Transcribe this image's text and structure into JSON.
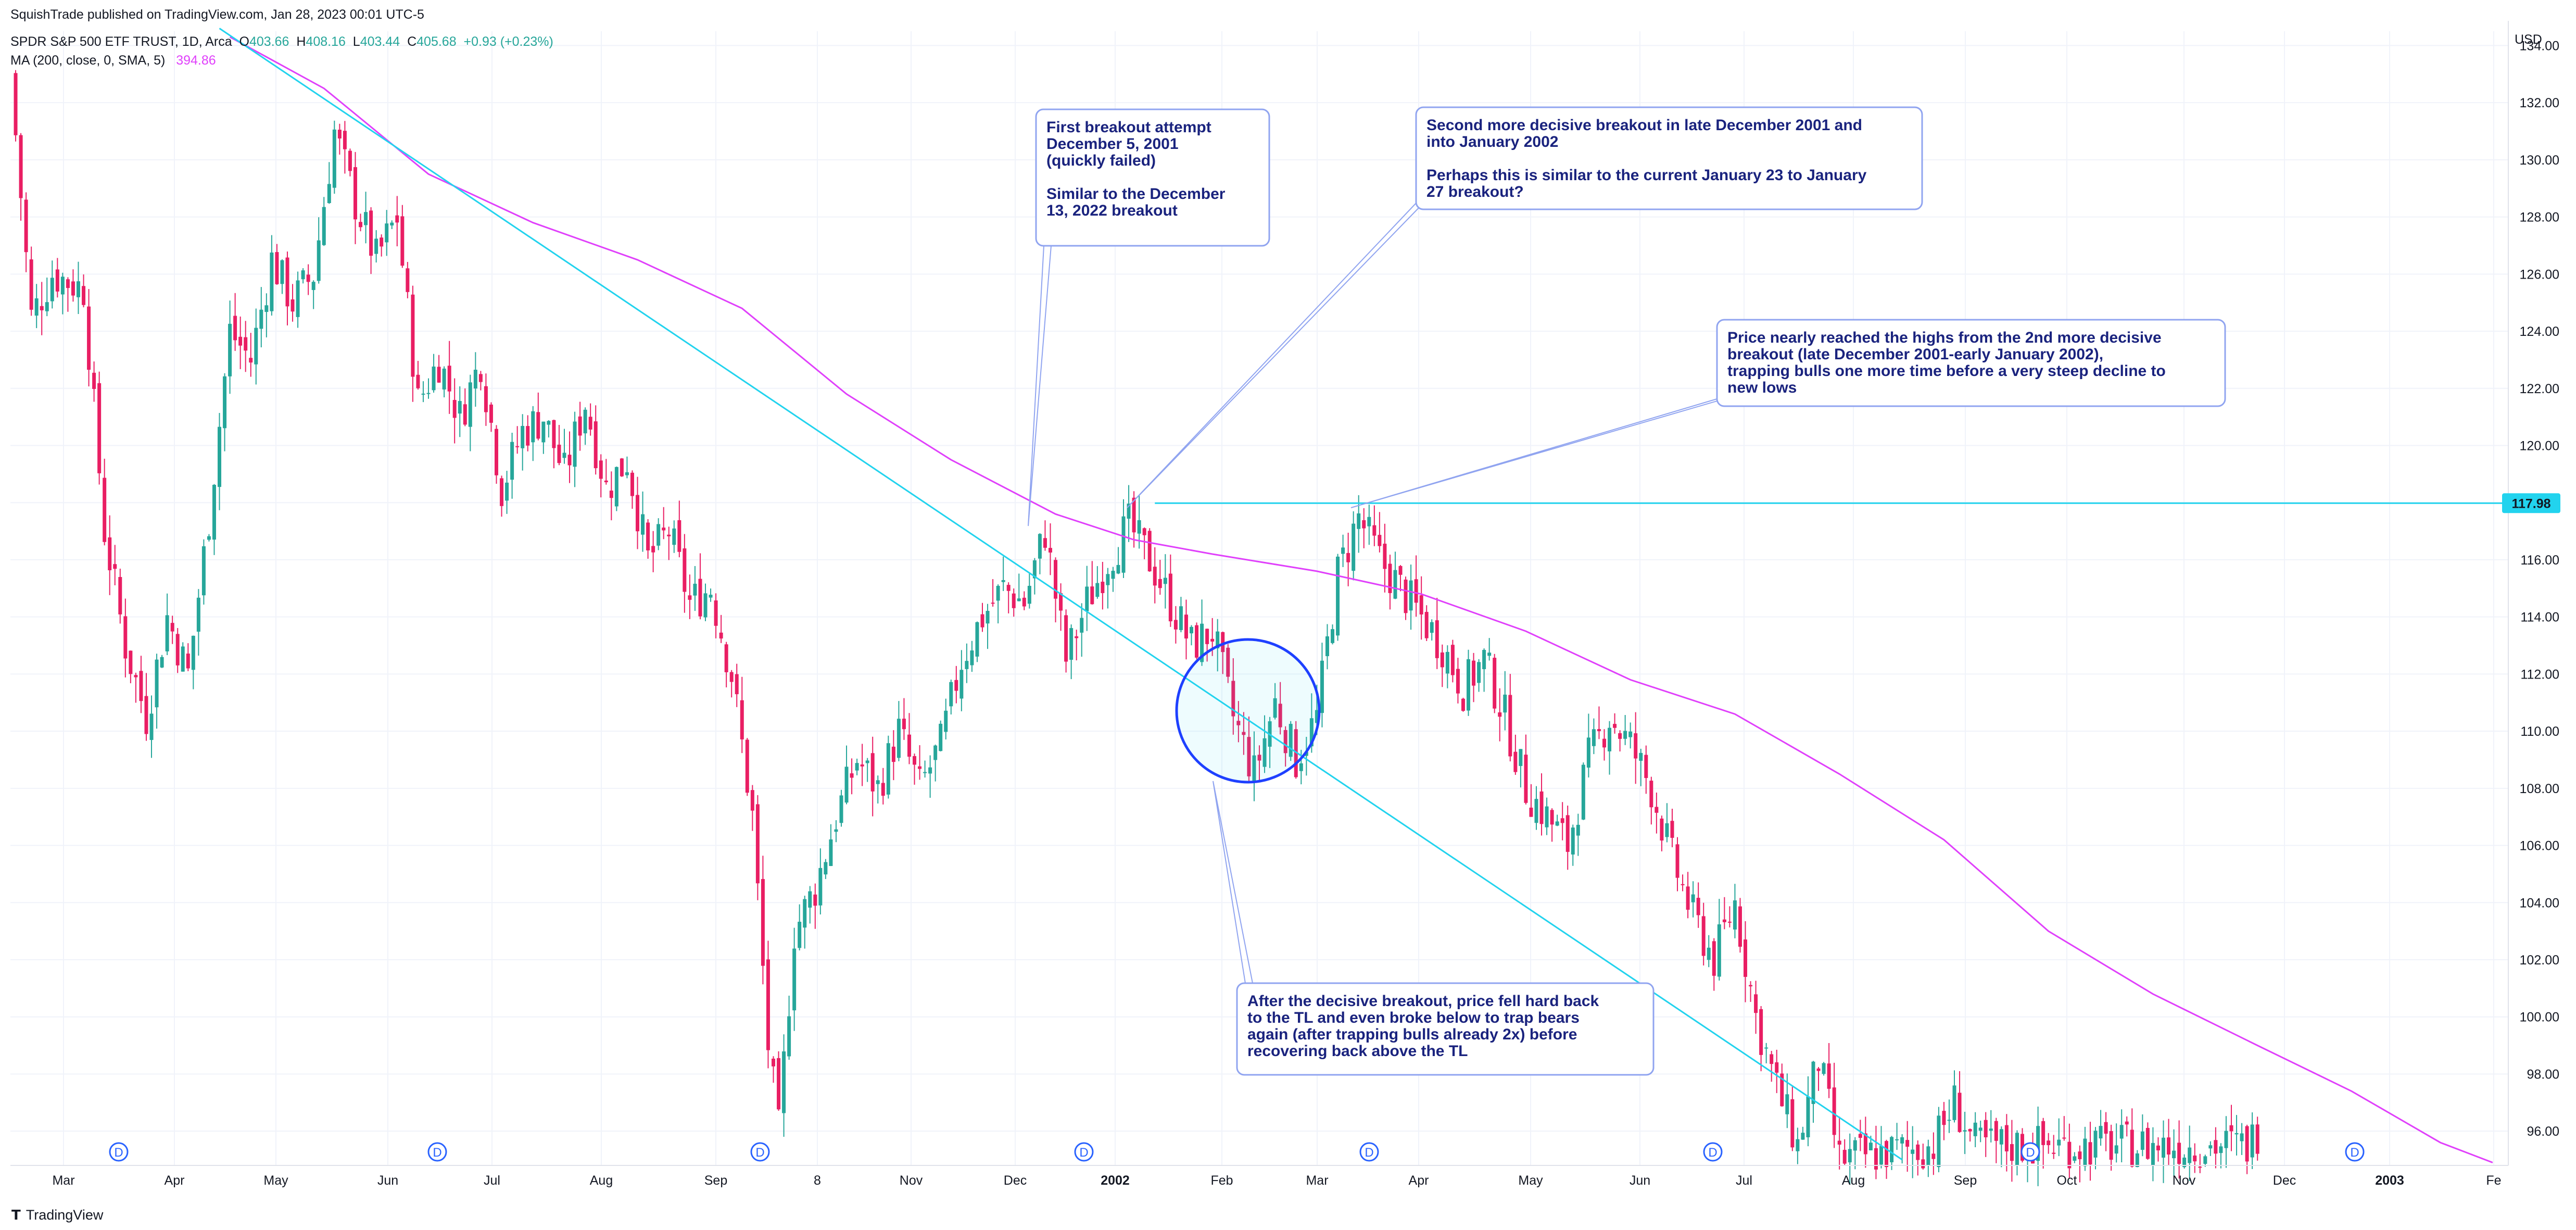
{
  "header": {
    "publisher": "SquishTrade published on TradingView.com, Jan 28, 2023 00:01 UTC-5",
    "symbol": "SPDR S&P 500 ETF TRUST, 1D, Arca",
    "ohlc": {
      "o_label": "O",
      "o": "403.66",
      "h_label": "H",
      "h": "408.16",
      "l_label": "L",
      "l": "403.44",
      "c_label": "C",
      "c": "405.68",
      "chg": "+0.93 (+0.23%)"
    },
    "ma_label": "MA (200, close, 0, SMA, 5)",
    "ma_value": "394.86"
  },
  "footer": {
    "brand": "TradingView",
    "logo": "tv-logo-icon"
  },
  "colors": {
    "up": "#26a69a",
    "down": "#e91e63",
    "trendline": "#22d3ee",
    "ma": "#e040fb",
    "annotation_text": "#1a237e",
    "annotation_border": "#90a4f0",
    "price_tag": "#22d3ee",
    "dividend": "#2962ff"
  },
  "chart_data": {
    "type": "candlestick",
    "currency": "USD",
    "ylim": [
      94.8,
      134.5
    ],
    "y_ticks": [
      96,
      98,
      100,
      102,
      104,
      106,
      108,
      110,
      112,
      114,
      116,
      118,
      120,
      122,
      124,
      126,
      128,
      130,
      132,
      134
    ],
    "x_tick_labels": [
      "Mar",
      "Apr",
      "May",
      "Jun",
      "Jul",
      "Aug",
      "Sep",
      "8",
      "Nov",
      "Dec",
      "2002",
      "Feb",
      "Mar",
      "Apr",
      "May",
      "Jun",
      "Jul",
      "Aug",
      "Sep",
      "Oct",
      "Nov",
      "Dec",
      "2003",
      "Fe"
    ],
    "price_tag": "117.98",
    "horizontal_level": 117.98,
    "dividend_marker": "D",
    "dividend_marker_count": 9,
    "close_path": [
      {
        "t": 0,
        "v": 133.0
      },
      {
        "t": 4,
        "v": 124.5
      },
      {
        "t": 8,
        "v": 126.0
      },
      {
        "t": 14,
        "v": 125.5
      },
      {
        "t": 18,
        "v": 117.0
      },
      {
        "t": 22,
        "v": 113.0
      },
      {
        "t": 26,
        "v": 110.5
      },
      {
        "t": 30,
        "v": 114.0
      },
      {
        "t": 34,
        "v": 112.0
      },
      {
        "t": 38,
        "v": 117.5
      },
      {
        "t": 42,
        "v": 124.0
      },
      {
        "t": 46,
        "v": 123.0
      },
      {
        "t": 50,
        "v": 126.5
      },
      {
        "t": 54,
        "v": 125.0
      },
      {
        "t": 58,
        "v": 126.0
      },
      {
        "t": 62,
        "v": 131.0
      },
      {
        "t": 66,
        "v": 128.5
      },
      {
        "t": 70,
        "v": 126.5
      },
      {
        "t": 74,
        "v": 128.0
      },
      {
        "t": 78,
        "v": 121.5
      },
      {
        "t": 82,
        "v": 123.0
      },
      {
        "t": 86,
        "v": 121.0
      },
      {
        "t": 90,
        "v": 123.0
      },
      {
        "t": 94,
        "v": 118.5
      },
      {
        "t": 98,
        "v": 120.5
      },
      {
        "t": 102,
        "v": 121.0
      },
      {
        "t": 106,
        "v": 119.0
      },
      {
        "t": 110,
        "v": 121.5
      },
      {
        "t": 114,
        "v": 118.5
      },
      {
        "t": 118,
        "v": 119.5
      },
      {
        "t": 122,
        "v": 116.0
      },
      {
        "t": 126,
        "v": 117.0
      },
      {
        "t": 130,
        "v": 114.5
      },
      {
        "t": 134,
        "v": 115.0
      },
      {
        "t": 138,
        "v": 112.0
      },
      {
        "t": 142,
        "v": 107.0
      },
      {
        "t": 145,
        "v": 99.0
      },
      {
        "t": 147,
        "v": 96.0
      },
      {
        "t": 150,
        "v": 103.0
      },
      {
        "t": 154,
        "v": 104.5
      },
      {
        "t": 158,
        "v": 107.0
      },
      {
        "t": 162,
        "v": 109.0
      },
      {
        "t": 166,
        "v": 108.0
      },
      {
        "t": 170,
        "v": 110.0
      },
      {
        "t": 174,
        "v": 108.0
      },
      {
        "t": 178,
        "v": 109.5
      },
      {
        "t": 182,
        "v": 112.5
      },
      {
        "t": 186,
        "v": 114.0
      },
      {
        "t": 190,
        "v": 115.0
      },
      {
        "t": 194,
        "v": 114.5
      },
      {
        "t": 198,
        "v": 117.0
      },
      {
        "t": 202,
        "v": 112.5
      },
      {
        "t": 206,
        "v": 114.5
      },
      {
        "t": 210,
        "v": 116.0
      },
      {
        "t": 214,
        "v": 117.2
      },
      {
        "t": 218,
        "v": 116.0
      },
      {
        "t": 222,
        "v": 114.5
      },
      {
        "t": 226,
        "v": 113.0
      },
      {
        "t": 230,
        "v": 113.5
      },
      {
        "t": 234,
        "v": 110.5
      },
      {
        "t": 238,
        "v": 108.5
      },
      {
        "t": 242,
        "v": 111.0
      },
      {
        "t": 246,
        "v": 109.0
      },
      {
        "t": 250,
        "v": 110.5
      },
      {
        "t": 254,
        "v": 115.5
      },
      {
        "t": 258,
        "v": 117.5
      },
      {
        "t": 262,
        "v": 116.0
      },
      {
        "t": 266,
        "v": 115.0
      },
      {
        "t": 270,
        "v": 114.0
      },
      {
        "t": 274,
        "v": 113.0
      },
      {
        "t": 278,
        "v": 111.5
      },
      {
        "t": 282,
        "v": 112.5
      },
      {
        "t": 286,
        "v": 110.5
      },
      {
        "t": 290,
        "v": 108.0
      },
      {
        "t": 294,
        "v": 107.0
      },
      {
        "t": 298,
        "v": 106.0
      },
      {
        "t": 302,
        "v": 109.0
      },
      {
        "t": 306,
        "v": 110.5
      },
      {
        "t": 310,
        "v": 109.5
      },
      {
        "t": 314,
        "v": 108.0
      },
      {
        "t": 318,
        "v": 105.5
      },
      {
        "t": 322,
        "v": 103.5
      },
      {
        "t": 326,
        "v": 102.0
      },
      {
        "t": 330,
        "v": 104.0
      },
      {
        "t": 334,
        "v": 100.0
      },
      {
        "t": 338,
        "v": 97.5
      },
      {
        "t": 342,
        "v": 95.5
      },
      {
        "t": 346,
        "v": 98.5
      },
      {
        "t": 350,
        "v": 95.0
      },
      {
        "t": 368,
        "v": 95.5
      },
      {
        "t": 372,
        "v": 97.0
      },
      {
        "t": 376,
        "v": 95.5
      },
      {
        "t": 428,
        "v": 95.5
      },
      {
        "t": 430,
        "v": 96.0
      }
    ],
    "t_max": 478,
    "series": [
      {
        "name": "MA (200, close, 0, SMA, 5)",
        "points": [
          {
            "t": 42,
            "v": 134.3
          },
          {
            "t": 60,
            "v": 132.5
          },
          {
            "t": 80,
            "v": 129.5
          },
          {
            "t": 100,
            "v": 127.8
          },
          {
            "t": 120,
            "v": 126.5
          },
          {
            "t": 140,
            "v": 124.8
          },
          {
            "t": 160,
            "v": 121.8
          },
          {
            "t": 180,
            "v": 119.5
          },
          {
            "t": 200,
            "v": 117.6
          },
          {
            "t": 215,
            "v": 116.7
          },
          {
            "t": 230,
            "v": 116.2
          },
          {
            "t": 250,
            "v": 115.6
          },
          {
            "t": 270,
            "v": 114.8
          },
          {
            "t": 290,
            "v": 113.5
          },
          {
            "t": 310,
            "v": 111.8
          },
          {
            "t": 330,
            "v": 110.6
          },
          {
            "t": 350,
            "v": 108.5
          },
          {
            "t": 370,
            "v": 106.2
          },
          {
            "t": 390,
            "v": 103.0
          },
          {
            "t": 410,
            "v": 100.8
          },
          {
            "t": 430,
            "v": 99.0
          },
          {
            "t": 448,
            "v": 97.4
          },
          {
            "t": 465,
            "v": 95.6
          },
          {
            "t": 475,
            "v": 94.9
          }
        ]
      }
    ],
    "trendlines": [
      {
        "name": "TL",
        "from": {
          "t": 40,
          "v": 134.6
        },
        "to": {
          "t": 362,
          "v": 95.0
        }
      }
    ],
    "annotations": [
      {
        "text": "First breakout attempt\nDecember 5, 2001\n(quickly failed)\n\nSimilar to the December\n13, 2022 breakout",
        "anchor": {
          "t": 199,
          "v": 117.8
        }
      },
      {
        "text": "Second more decisive breakout in late December 2001 and\ninto January 2002\n\nPerhaps this is similar to the current January 23 to January\n27 breakout?",
        "anchor": {
          "t": 219,
          "v": 118.0
        }
      },
      {
        "text": "Price nearly reached the highs from the 2nd more decisive\nbreakout (late December 2001-early January 2002),\ntrapping bulls one more time before a very steep decline to\nnew lows",
        "anchor": {
          "t": 260,
          "v": 118.0
        }
      },
      {
        "text": "After the decisive breakout, price fell hard back\nto the TL and even broke below to trap bears\nagain (after trapping bulls already 2x) before\nrecovering back above the TL",
        "anchor": {
          "t": 233,
          "v": 108.3
        }
      }
    ]
  }
}
